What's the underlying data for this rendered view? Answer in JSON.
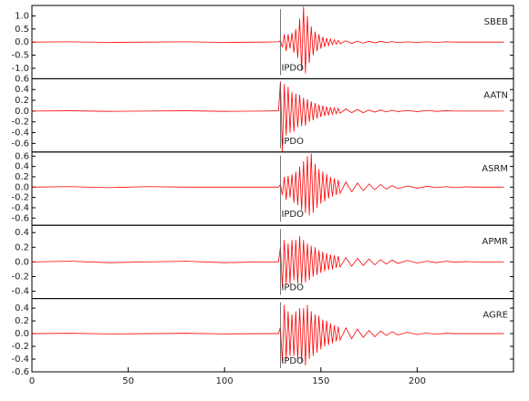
{
  "chart_data": [
    {
      "type": "line",
      "xlim": [
        0,
        250
      ],
      "ylim": [
        -1.4,
        1.4
      ],
      "yticks": [
        {
          "value": -1,
          "label": "-1.0"
        },
        -0.5,
        {
          "value": 0,
          "label": "0.0"
        },
        0.5,
        {
          "value": 1,
          "label": "1.0"
        }
      ],
      "annotations": [
        {
          "text": "IPDO",
          "x": 129
        }
      ],
      "x": [
        0,
        20,
        40,
        60,
        80,
        100,
        120,
        128,
        129,
        130,
        131,
        132,
        133,
        134,
        135,
        136,
        137,
        138,
        139,
        140,
        141,
        142,
        143,
        144,
        145,
        146,
        147,
        148,
        149,
        150,
        151,
        152,
        153,
        154,
        155,
        156,
        157,
        158,
        159,
        160,
        163,
        166,
        169,
        172,
        175,
        178,
        181,
        184,
        187,
        190,
        195,
        200,
        205,
        210,
        215,
        220,
        225,
        230,
        235,
        240,
        245
      ],
      "series": [
        {
          "name": "SBEB",
          "color": "#ff0000",
          "values": [
            0,
            0.01,
            -0.01,
            0,
            0.01,
            -0.01,
            0,
            0.01,
            0.05,
            -0.2,
            0.3,
            -0.35,
            0.3,
            -0.25,
            0.35,
            -0.4,
            0.5,
            -0.6,
            0.9,
            -1.1,
            1.35,
            -1.2,
            1.0,
            -0.8,
            0.6,
            -0.5,
            0.4,
            -0.35,
            0.3,
            -0.25,
            0.2,
            -0.18,
            0.15,
            -0.13,
            0.12,
            -0.1,
            0.09,
            -0.08,
            0.07,
            -0.06,
            0.05,
            -0.05,
            0.04,
            -0.04,
            0.03,
            -0.03,
            0.03,
            -0.02,
            0.02,
            -0.02,
            0.01,
            -0.01,
            0.01,
            -0.01,
            0.01,
            0,
            0,
            0,
            0,
            0,
            0
          ]
        }
      ]
    },
    {
      "type": "line",
      "xlim": [
        0,
        250
      ],
      "ylim": [
        -0.76,
        0.6
      ],
      "yticks": [
        -0.6,
        -0.4,
        -0.2,
        {
          "value": 0,
          "label": "0.0"
        },
        0.2,
        0.4,
        0.6
      ],
      "annotations": [
        {
          "text": "IPDO",
          "x": 129
        }
      ],
      "x": [
        0,
        20,
        40,
        60,
        80,
        100,
        120,
        128,
        129,
        130,
        131,
        132,
        133,
        134,
        135,
        136,
        137,
        138,
        139,
        140,
        141,
        142,
        143,
        144,
        145,
        146,
        147,
        148,
        149,
        150,
        151,
        152,
        153,
        154,
        155,
        156,
        157,
        158,
        159,
        160,
        163,
        166,
        169,
        172,
        175,
        178,
        181,
        184,
        187,
        190,
        195,
        200,
        205,
        210,
        215,
        220,
        225,
        230,
        235,
        240,
        245
      ],
      "series": [
        {
          "name": "AATN",
          "color": "#ff0000",
          "values": [
            0,
            0.005,
            -0.005,
            0,
            0.005,
            -0.005,
            0,
            0.005,
            0.55,
            -0.75,
            0.5,
            -0.45,
            0.45,
            -0.4,
            0.35,
            -0.38,
            0.32,
            -0.3,
            0.3,
            -0.28,
            0.25,
            -0.27,
            0.22,
            -0.2,
            0.18,
            -0.17,
            0.15,
            -0.14,
            0.12,
            -0.11,
            0.1,
            -0.09,
            0.08,
            -0.08,
            0.07,
            -0.06,
            0.06,
            -0.05,
            0.05,
            -0.04,
            0.04,
            -0.03,
            0.03,
            -0.03,
            0.02,
            -0.02,
            0.02,
            -0.015,
            0.015,
            -0.01,
            0.01,
            -0.01,
            0.01,
            -0.005,
            0.005,
            0,
            0,
            0,
            0,
            0,
            0
          ]
        }
      ]
    },
    {
      "type": "line",
      "xlim": [
        0,
        250
      ],
      "ylim": [
        -0.74,
        0.68
      ],
      "yticks": [
        -0.6,
        -0.4,
        -0.2,
        {
          "value": 0,
          "label": "0.0"
        },
        0.2,
        0.4,
        0.6
      ],
      "annotations": [
        {
          "text": "IPDO",
          "x": 129
        }
      ],
      "x": [
        0,
        20,
        40,
        60,
        80,
        100,
        120,
        128,
        129,
        130,
        131,
        132,
        133,
        134,
        135,
        136,
        137,
        138,
        139,
        140,
        141,
        142,
        143,
        144,
        145,
        146,
        147,
        148,
        149,
        150,
        151,
        152,
        153,
        154,
        155,
        156,
        157,
        158,
        159,
        160,
        163,
        166,
        169,
        172,
        175,
        178,
        181,
        184,
        187,
        190,
        195,
        200,
        205,
        210,
        215,
        220,
        225,
        230,
        235,
        240,
        245
      ],
      "series": [
        {
          "name": "ASRM",
          "color": "#ff0000",
          "values": [
            0,
            0.01,
            -0.01,
            0.01,
            0,
            0,
            0,
            0,
            0.05,
            -0.15,
            0.2,
            -0.25,
            0.22,
            -0.2,
            0.25,
            -0.3,
            0.3,
            -0.35,
            0.4,
            -0.45,
            0.5,
            -0.5,
            0.6,
            -0.55,
            0.65,
            -0.5,
            0.45,
            -0.4,
            0.35,
            -0.32,
            0.3,
            -0.28,
            0.25,
            -0.22,
            0.2,
            -0.18,
            0.17,
            -0.15,
            0.14,
            -0.12,
            0.1,
            -0.09,
            0.08,
            -0.07,
            0.06,
            -0.05,
            0.05,
            -0.04,
            0.03,
            -0.03,
            0.02,
            -0.02,
            0.015,
            -0.01,
            0.01,
            -0.01,
            0.005,
            0,
            0,
            0,
            0
          ]
        }
      ]
    },
    {
      "type": "line",
      "xlim": [
        0,
        250
      ],
      "ylim": [
        -0.5,
        0.5
      ],
      "yticks": [
        -0.4,
        -0.2,
        {
          "value": 0,
          "label": "0.0"
        },
        0.2,
        0.4
      ],
      "annotations": [
        {
          "text": "IPDO",
          "x": 129
        }
      ],
      "x": [
        0,
        20,
        40,
        60,
        80,
        100,
        120,
        128,
        129,
        130,
        131,
        132,
        133,
        134,
        135,
        136,
        137,
        138,
        139,
        140,
        141,
        142,
        143,
        144,
        145,
        146,
        147,
        148,
        149,
        150,
        151,
        152,
        153,
        154,
        155,
        156,
        157,
        158,
        159,
        160,
        163,
        166,
        169,
        172,
        175,
        178,
        181,
        184,
        187,
        190,
        195,
        200,
        205,
        210,
        215,
        220,
        225,
        230,
        235,
        240,
        245
      ],
      "series": [
        {
          "name": "APMR",
          "color": "#ff0000",
          "values": [
            0,
            0.01,
            -0.01,
            0,
            0.01,
            -0.01,
            0,
            0,
            0.2,
            -0.35,
            0.3,
            -0.3,
            0.25,
            -0.3,
            0.3,
            -0.25,
            0.3,
            -0.3,
            0.35,
            -0.3,
            0.3,
            -0.28,
            0.25,
            -0.25,
            0.22,
            -0.2,
            0.2,
            -0.18,
            0.16,
            -0.15,
            0.14,
            -0.13,
            0.12,
            -0.11,
            0.1,
            -0.1,
            0.09,
            -0.08,
            0.08,
            -0.07,
            0.06,
            -0.06,
            0.05,
            -0.05,
            0.04,
            -0.04,
            0.03,
            -0.03,
            0.025,
            -0.02,
            0.02,
            -0.015,
            0.01,
            -0.01,
            0.01,
            -0.005,
            0.005,
            0,
            0,
            0,
            0
          ]
        }
      ]
    },
    {
      "type": "line",
      "xlim": [
        0,
        250
      ],
      "ylim": [
        -0.6,
        0.55
      ],
      "yticks": [
        -0.6,
        -0.4,
        -0.2,
        {
          "value": 0,
          "label": "0.0"
        },
        0.2,
        0.4
      ],
      "xticks": [
        0,
        50,
        100,
        150,
        200
      ],
      "annotations": [
        {
          "text": "IPDO",
          "x": 129
        }
      ],
      "x": [
        0,
        20,
        40,
        60,
        80,
        100,
        120,
        128,
        129,
        130,
        131,
        132,
        133,
        134,
        135,
        136,
        137,
        138,
        139,
        140,
        141,
        142,
        143,
        144,
        145,
        146,
        147,
        148,
        149,
        150,
        151,
        152,
        153,
        154,
        155,
        156,
        157,
        158,
        159,
        160,
        163,
        166,
        169,
        172,
        175,
        178,
        181,
        184,
        187,
        190,
        195,
        200,
        205,
        210,
        215,
        220,
        225,
        230,
        235,
        240,
        245
      ],
      "series": [
        {
          "name": "AGRE",
          "color": "#ff0000",
          "values": [
            0,
            0.005,
            -0.005,
            0,
            0.005,
            -0.005,
            0,
            0,
            0.1,
            -0.45,
            0.45,
            -0.4,
            0.35,
            -0.35,
            0.3,
            -0.35,
            0.35,
            -0.4,
            0.4,
            -0.45,
            0.4,
            -0.5,
            0.45,
            -0.4,
            0.35,
            -0.35,
            0.3,
            -0.3,
            0.28,
            -0.25,
            0.22,
            -0.2,
            0.2,
            -0.18,
            0.16,
            -0.15,
            0.13,
            -0.12,
            0.11,
            -0.1,
            0.09,
            -0.08,
            0.07,
            -0.06,
            0.05,
            -0.05,
            0.04,
            -0.03,
            0.03,
            -0.02,
            0.02,
            -0.015,
            0.01,
            -0.01,
            0.005,
            0,
            0,
            0,
            0,
            0,
            0
          ]
        }
      ]
    }
  ]
}
